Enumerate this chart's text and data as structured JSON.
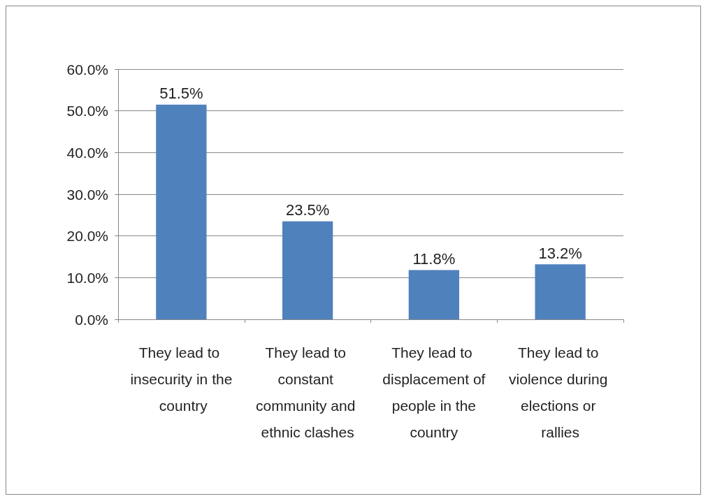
{
  "chart_data": {
    "type": "bar",
    "categories": [
      "They lead to insecurity in the country",
      "They lead to constant community and ethnic clashes",
      "They lead to displacement of people in the country",
      "They lead to violence during elections or rallies"
    ],
    "values": [
      51.5,
      23.5,
      11.8,
      13.2
    ],
    "value_labels": [
      "51.5%",
      "23.5%",
      "11.8%",
      "13.2%"
    ],
    "color": "#4f81bd",
    "ylim": [
      0,
      60
    ],
    "yticks": [
      {
        "value": 0,
        "label": "0.0%"
      },
      {
        "value": 10,
        "label": "10.0%"
      },
      {
        "value": 20,
        "label": "20.0%"
      },
      {
        "value": 30,
        "label": "30.0%"
      },
      {
        "value": 40,
        "label": "40.0%"
      },
      {
        "value": 50,
        "label": "50.0%"
      },
      {
        "value": 60,
        "label": "60.0%"
      }
    ],
    "grid": true
  }
}
